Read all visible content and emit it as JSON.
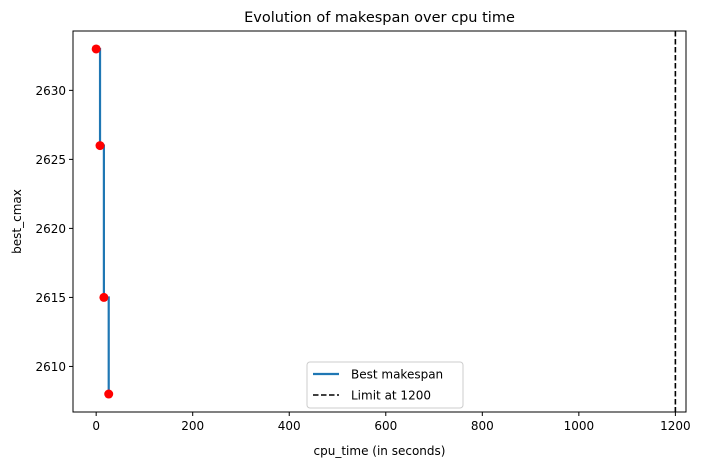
{
  "chart_data": {
    "type": "line",
    "title": "Evolution of makespan over cpu time",
    "xlabel": "cpu_time (in seconds)",
    "ylabel": "best_cmax",
    "xlim": [
      -48,
      1222
    ],
    "ylim": [
      2606.7,
      2634.3
    ],
    "x_ticks": [
      0,
      200,
      400,
      600,
      800,
      1000,
      1200
    ],
    "y_ticks": [
      2610,
      2615,
      2620,
      2625,
      2630
    ],
    "series": [
      {
        "name": "Best makespan",
        "style": "step-post",
        "color": "#1f77b4",
        "x": [
          0,
          8,
          16,
          26
        ],
        "y": [
          2633,
          2626,
          2615,
          2608
        ]
      }
    ],
    "markers": {
      "color": "#ff0000",
      "x": [
        0,
        8,
        16,
        26
      ],
      "y": [
        2633,
        2626,
        2615,
        2608
      ]
    },
    "vertical_lines": [
      {
        "name": "Limit at 1200",
        "x": 1200,
        "style": "dashed",
        "color": "#000000"
      }
    ],
    "legend_position": "lower-center",
    "grid": false
  }
}
